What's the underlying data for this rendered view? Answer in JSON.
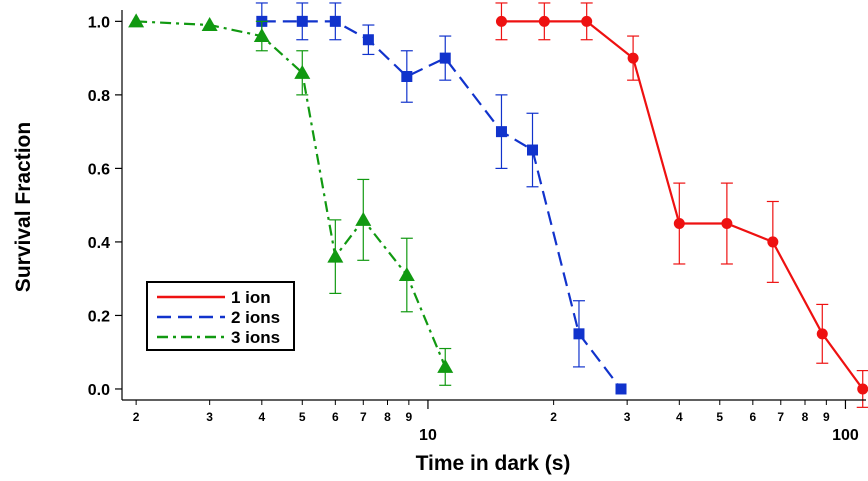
{
  "chart_data": {
    "type": "line",
    "xlabel": "Time in dark (s)",
    "ylabel": "Survival Fraction",
    "xscale": "log",
    "xlim": [
      1.85,
      112
    ],
    "ylim": [
      -0.03,
      1.02
    ],
    "x_major_ticks": [
      {
        "value": 10,
        "label": "10"
      },
      {
        "value": 100,
        "label": "100"
      }
    ],
    "x_minor_ticks": [
      {
        "value": 2,
        "label": "2"
      },
      {
        "value": 3,
        "label": "3"
      },
      {
        "value": 4,
        "label": "4"
      },
      {
        "value": 5,
        "label": "5"
      },
      {
        "value": 6,
        "label": "6"
      },
      {
        "value": 7,
        "label": "7"
      },
      {
        "value": 8,
        "label": "8"
      },
      {
        "value": 9,
        "label": "9"
      },
      {
        "value": 20,
        "label": "2"
      },
      {
        "value": 30,
        "label": "3"
      },
      {
        "value": 40,
        "label": "4"
      },
      {
        "value": 50,
        "label": "5"
      },
      {
        "value": 60,
        "label": "6"
      },
      {
        "value": 70,
        "label": "7"
      },
      {
        "value": 80,
        "label": "8"
      },
      {
        "value": 90,
        "label": "9"
      }
    ],
    "y_ticks": [
      {
        "value": 0.0,
        "label": "0.0"
      },
      {
        "value": 0.2,
        "label": "0.2"
      },
      {
        "value": 0.4,
        "label": "0.4"
      },
      {
        "value": 0.6,
        "label": "0.6"
      },
      {
        "value": 0.8,
        "label": "0.8"
      },
      {
        "value": 1.0,
        "label": "1.0"
      }
    ],
    "grid": false,
    "legend_position": "bottom-left",
    "series": [
      {
        "name": "1 ion",
        "color": "#ee1111",
        "line_style": "solid",
        "marker": "circle",
        "points": [
          {
            "x": 15,
            "y": 1.0,
            "err": 0.05
          },
          {
            "x": 19,
            "y": 1.0,
            "err": 0.05
          },
          {
            "x": 24,
            "y": 1.0,
            "err": 0.05
          },
          {
            "x": 31,
            "y": 0.9,
            "err": 0.06
          },
          {
            "x": 40,
            "y": 0.45,
            "err": 0.11
          },
          {
            "x": 52,
            "y": 0.45,
            "err": 0.11
          },
          {
            "x": 67,
            "y": 0.4,
            "err": 0.11
          },
          {
            "x": 88,
            "y": 0.15,
            "err": 0.08
          },
          {
            "x": 110,
            "y": 0.0,
            "err": 0.05
          }
        ]
      },
      {
        "name": "2 ions",
        "color": "#1133cc",
        "line_style": "dashed",
        "marker": "square",
        "points": [
          {
            "x": 4.0,
            "y": 1.0,
            "err": 0.05
          },
          {
            "x": 5.0,
            "y": 1.0,
            "err": 0.05
          },
          {
            "x": 6.0,
            "y": 1.0,
            "err": 0.05
          },
          {
            "x": 7.2,
            "y": 0.95,
            "err": 0.04
          },
          {
            "x": 8.9,
            "y": 0.85,
            "err": 0.07
          },
          {
            "x": 11.0,
            "y": 0.9,
            "err": 0.06
          },
          {
            "x": 15.0,
            "y": 0.7,
            "err": 0.1
          },
          {
            "x": 17.8,
            "y": 0.65,
            "err": 0.1
          },
          {
            "x": 23.0,
            "y": 0.15,
            "err": 0.09
          },
          {
            "x": 29.0,
            "y": 0.0,
            "err": 0.0
          }
        ]
      },
      {
        "name": "3 ions",
        "color": "#119911",
        "line_style": "dashdot",
        "marker": "triangle",
        "points": [
          {
            "x": 2.0,
            "y": 1.0,
            "err": 0.0
          },
          {
            "x": 3.0,
            "y": 0.99,
            "err": 0.0
          },
          {
            "x": 4.0,
            "y": 0.96,
            "err": 0.04
          },
          {
            "x": 5.0,
            "y": 0.86,
            "err": 0.06
          },
          {
            "x": 6.0,
            "y": 0.36,
            "err": 0.1
          },
          {
            "x": 7.0,
            "y": 0.46,
            "err": 0.11
          },
          {
            "x": 8.9,
            "y": 0.31,
            "err": 0.1
          },
          {
            "x": 11.0,
            "y": 0.06,
            "err": 0.05
          }
        ]
      }
    ]
  }
}
